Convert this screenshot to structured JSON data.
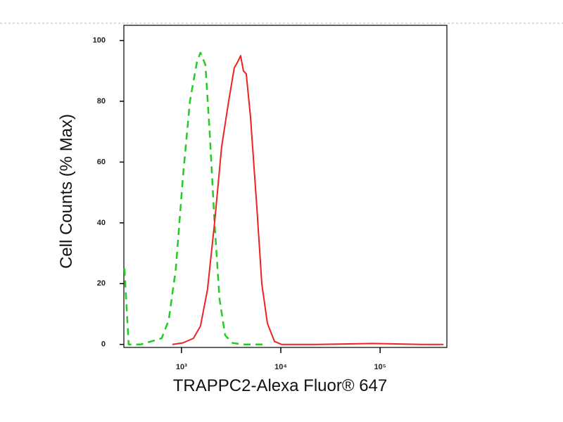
{
  "chart_data": {
    "type": "line",
    "xscale": "log",
    "xlabel": "TRAPPC2-Alexa Fluor® 647",
    "ylabel": "Cell Counts (% Max)",
    "xlim": [
      263,
      470000
    ],
    "ylim": [
      -1,
      105
    ],
    "xticks": [
      {
        "value": 1000,
        "label": "10³"
      },
      {
        "value": 10000,
        "label": "10⁴"
      },
      {
        "value": 100000,
        "label": "10⁵"
      }
    ],
    "yticks": [
      0,
      20,
      40,
      60,
      80,
      100
    ],
    "series": [
      {
        "color": "#22cc22",
        "dash": true,
        "x": [
          267,
          294,
          388,
          495,
          632,
          745,
          878,
          1033,
          1217,
          1432,
          1553,
          1741,
          1921,
          2154,
          2414,
          2752,
          3243,
          4140,
          7330
        ],
        "values": [
          25,
          0,
          0,
          1,
          2,
          8,
          25,
          55,
          80,
          93,
          96,
          92,
          70,
          40,
          15,
          3,
          0.5,
          0,
          0
        ]
      },
      {
        "color": "#ee2222",
        "dash": false,
        "x": [
          809,
          1033,
          1320,
          1553,
          1828,
          2154,
          2535,
          2985,
          3404,
          3690,
          3942,
          4207,
          4490,
          4952,
          5738,
          6437,
          7328,
          8630,
          10160,
          23000,
          84900,
          266700,
          434500
        ],
        "values": [
          0,
          0.5,
          2,
          6,
          18,
          40,
          65,
          80,
          91,
          93,
          95,
          90,
          89,
          75,
          45,
          20,
          7,
          1,
          0,
          0,
          0.3,
          0,
          0
        ]
      }
    ]
  }
}
